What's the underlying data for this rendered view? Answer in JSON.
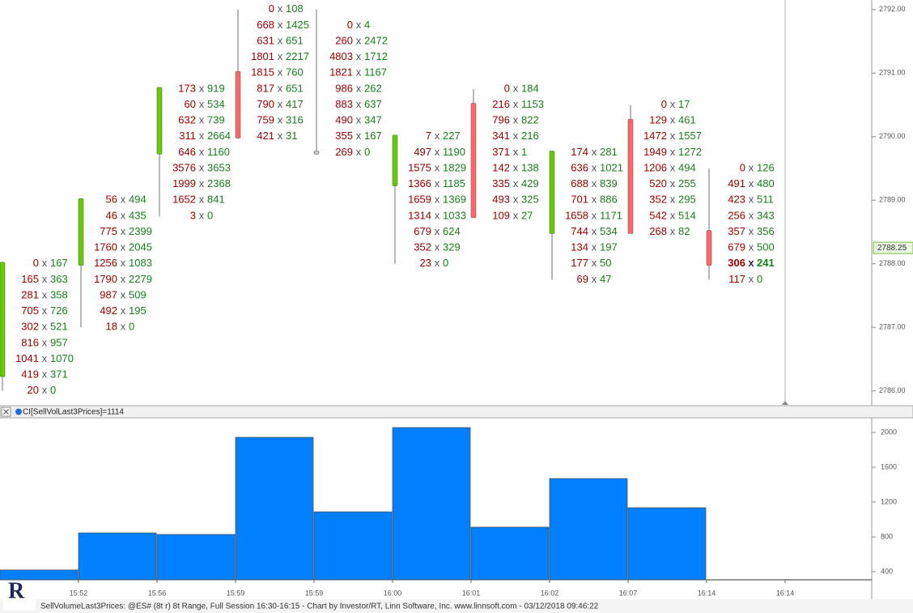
{
  "chart_data": [
    {
      "type": "footprint",
      "separator": "x",
      "ylim": [
        2785.78,
        2792.15
      ],
      "yticks": [
        {
          "value": 2786,
          "label": "2786.00"
        },
        {
          "value": 2787,
          "label": "2787.00"
        },
        {
          "value": 2788,
          "label": "2788.00"
        },
        {
          "value": 2789,
          "label": "2789.00"
        },
        {
          "value": 2790,
          "label": "2790.00"
        },
        {
          "value": 2791,
          "label": "2791.00"
        },
        {
          "value": 2792,
          "label": "2792.00"
        }
      ],
      "last_price": {
        "value": 2788.25,
        "label": "2788.25"
      },
      "bid_color": "#a00000",
      "ask_color": "#17801a",
      "up_color": "#66cc00",
      "down_color": "#ff6666",
      "flat_color": "#c8c8c8",
      "columns": [
        {
          "prices": [
            2786,
            2786.25,
            2786.5,
            2786.75,
            2787,
            2787.25,
            2787.5,
            2787.75,
            2788
          ],
          "bid": [
            20,
            419,
            1041,
            816,
            302,
            705,
            281,
            165,
            0
          ],
          "ask": [
            0,
            371,
            1070,
            957,
            521,
            726,
            358,
            363,
            167
          ],
          "open": 2786.25,
          "high": 2788,
          "low": 2786,
          "close": 2788
        },
        {
          "prices": [
            2787,
            2787.25,
            2787.5,
            2787.75,
            2788,
            2788.25,
            2788.5,
            2788.75,
            2789
          ],
          "bid": [
            18,
            492,
            987,
            1790,
            1256,
            1760,
            775,
            46,
            56
          ],
          "ask": [
            0,
            195,
            509,
            2279,
            1083,
            2045,
            2399,
            435,
            494
          ],
          "open": 2788,
          "high": 2789,
          "low": 2787,
          "close": 2789
        },
        {
          "prices": [
            2788.75,
            2789,
            2789.25,
            2789.5,
            2789.75,
            2790,
            2790.25,
            2790.5,
            2790.75
          ],
          "bid": [
            3,
            1652,
            1999,
            3576,
            646,
            311,
            632,
            60,
            173
          ],
          "ask": [
            0,
            841,
            2368,
            3653,
            1160,
            2664,
            739,
            534,
            919
          ],
          "open": 2789.75,
          "high": 2790.75,
          "low": 2788.75,
          "close": 2790.75
        },
        {
          "prices": [
            2790,
            2790.25,
            2790.5,
            2790.75,
            2791,
            2791.25,
            2791.5,
            2791.75,
            2792
          ],
          "bid": [
            421,
            759,
            790,
            817,
            1815,
            1801,
            631,
            668,
            0
          ],
          "ask": [
            31,
            316,
            417,
            651,
            760,
            2217,
            651,
            1425,
            108
          ],
          "open": 2791,
          "high": 2792,
          "low": 2790,
          "close": 2790
        },
        {
          "prices": [
            2789.75,
            2790,
            2790.25,
            2790.5,
            2790.75,
            2791,
            2791.25,
            2791.5,
            2791.75
          ],
          "bid": [
            269,
            355,
            490,
            883,
            986,
            1821,
            4803,
            260,
            0
          ],
          "ask": [
            0,
            167,
            347,
            637,
            262,
            1167,
            1712,
            2472,
            4
          ],
          "open": 2789.75,
          "high": 2792,
          "low": 2789.75,
          "close": 2789.75
        },
        {
          "prices": [
            2788,
            2788.25,
            2788.5,
            2788.75,
            2789,
            2789.25,
            2789.5,
            2789.75,
            2790
          ],
          "bid": [
            23,
            352,
            679,
            1314,
            1659,
            1366,
            1575,
            497,
            7
          ],
          "ask": [
            0,
            329,
            624,
            1033,
            1369,
            1185,
            1829,
            1190,
            227
          ],
          "open": 2789.25,
          "high": 2790,
          "low": 2788,
          "close": 2790
        },
        {
          "prices": [
            2788.75,
            2789,
            2789.25,
            2789.5,
            2789.75,
            2790,
            2790.25,
            2790.5,
            2790.75
          ],
          "bid": [
            109,
            493,
            335,
            142,
            371,
            341,
            796,
            216,
            0
          ],
          "ask": [
            27,
            325,
            429,
            138,
            1,
            216,
            822,
            1153,
            184
          ],
          "open": 2790.5,
          "high": 2790.75,
          "low": 2788.75,
          "close": 2788.75
        },
        {
          "prices": [
            2787.75,
            2788,
            2788.25,
            2788.5,
            2788.75,
            2789,
            2789.25,
            2789.5,
            2789.75
          ],
          "bid": [
            69,
            177,
            134,
            744,
            1658,
            701,
            688,
            636,
            174
          ],
          "ask": [
            47,
            50,
            197,
            534,
            1171,
            886,
            839,
            1021,
            281
          ],
          "open": 2788.5,
          "high": 2789.75,
          "low": 2787.75,
          "close": 2789.75
        },
        {
          "prices": [
            2788.5,
            2788.75,
            2789,
            2789.25,
            2789.5,
            2789.75,
            2790,
            2790.25,
            2790.5
          ],
          "bid": [
            268,
            542,
            352,
            520,
            1206,
            1949,
            1472,
            129,
            0
          ],
          "ask": [
            82,
            514,
            295,
            255,
            494,
            1272,
            1557,
            461,
            17
          ],
          "open": 2790.25,
          "high": 2790.5,
          "low": 2788.5,
          "close": 2788.5
        },
        {
          "prices": [
            2787.75,
            2788,
            2788.25,
            2788.5,
            2788.75,
            2789,
            2789.25,
            2789.5
          ],
          "bid": [
            117,
            306,
            679,
            357,
            256,
            423,
            491,
            0
          ],
          "ask": [
            0,
            241,
            500,
            356,
            343,
            511,
            480,
            126
          ],
          "open": 2788.5,
          "high": 2789.5,
          "low": 2787.75,
          "close": 2788
        }
      ]
    },
    {
      "type": "bar",
      "title": "CI[SellVolLast3Prices]=1114",
      "categories": [
        "15:52",
        "15:56",
        "15:59",
        "15:59",
        "16:00",
        "16:01",
        "16:02",
        "16:07",
        "16:14",
        "16:14"
      ],
      "values": [
        420,
        846,
        828,
        1944,
        1088,
        2056,
        912,
        1470,
        1135,
        null
      ],
      "color": "#0080ff",
      "ylim": [
        307,
        2149
      ],
      "yticks": [
        400,
        800,
        1200,
        1600,
        2000
      ]
    }
  ],
  "footer": "SellVolumeLast3Prices: @ES# (8t r) 8t Range, Full Session 16:30-16:15 - Chart by Investor/RT, Linn Software, Inc. www.linnsoft.com - 03/12/2018 09:46:22",
  "logo": "R"
}
